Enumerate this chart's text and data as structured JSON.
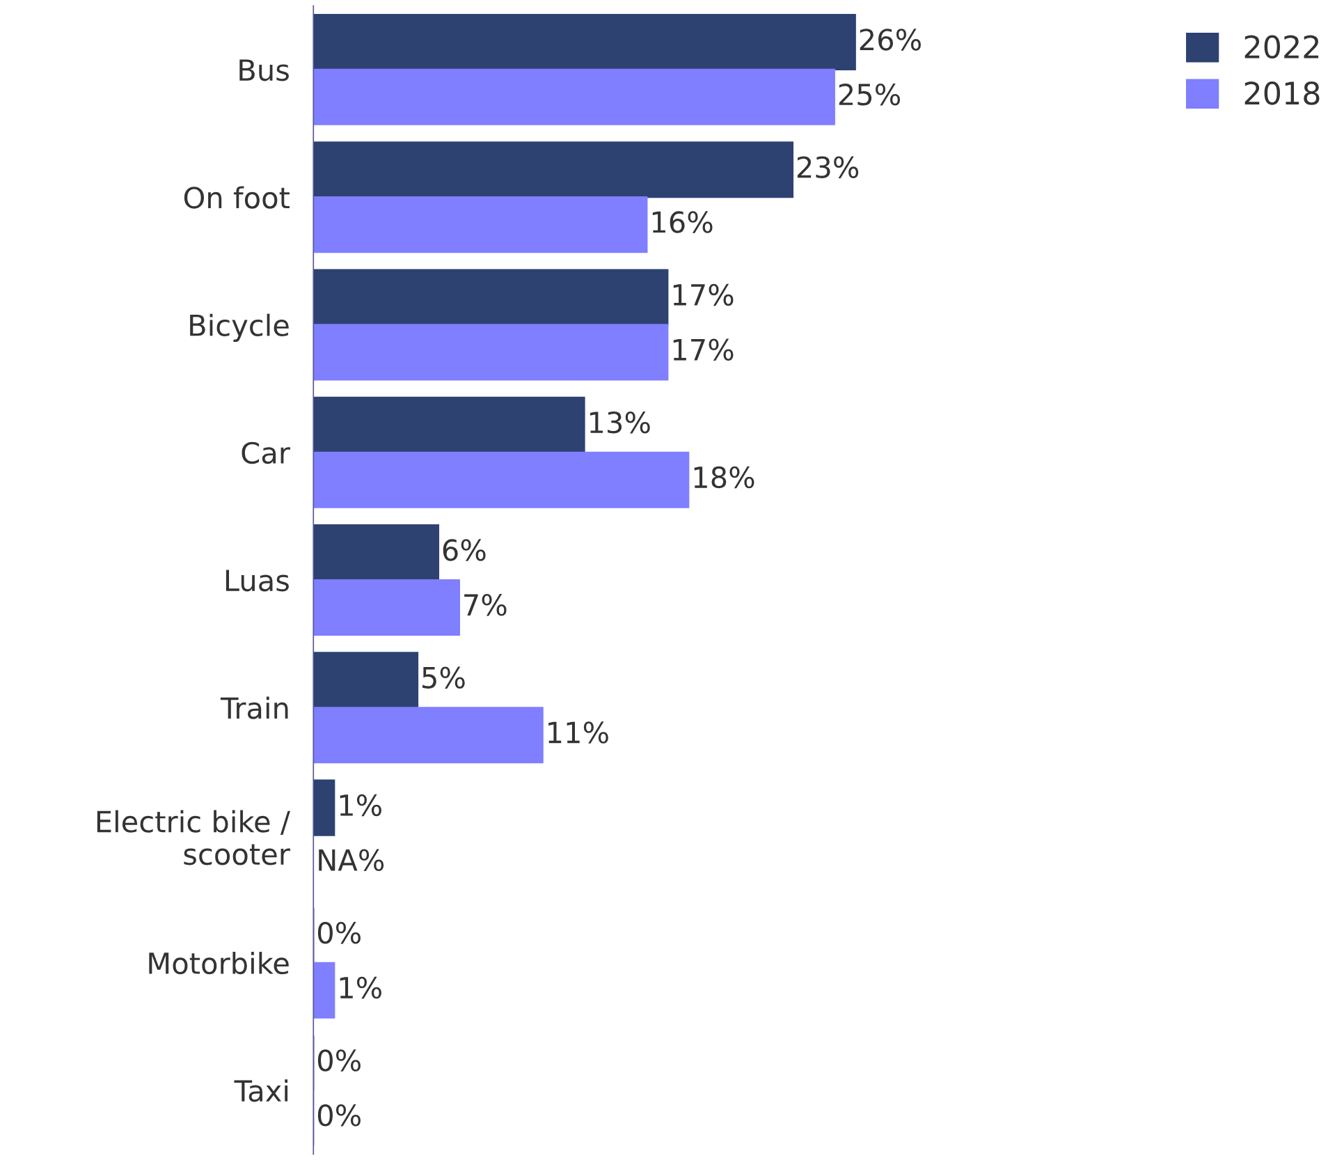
{
  "chart_data": {
    "type": "bar",
    "orientation": "horizontal",
    "categories": [
      "Bus",
      "On foot",
      "Bicycle",
      "Car",
      "Luas",
      "Train",
      "Electric bike /\nscooter",
      "Motorbike",
      "Taxi"
    ],
    "series": [
      {
        "name": "2022",
        "color": "#2e4272",
        "values": [
          26,
          23,
          17,
          13,
          6,
          5,
          1,
          0,
          0
        ],
        "value_labels": [
          "26%",
          "23%",
          "17%",
          "13%",
          "6%",
          "5%",
          "1%",
          "0%",
          "0%"
        ]
      },
      {
        "name": "2018",
        "color": "#7f7fff",
        "values": [
          25,
          16,
          17,
          18,
          7,
          11,
          null,
          1,
          0
        ],
        "value_labels": [
          "25%",
          "16%",
          "17%",
          "18%",
          "7%",
          "11%",
          "NA%",
          "1%",
          "0%"
        ]
      }
    ],
    "legend": "top right",
    "grid": false
  }
}
